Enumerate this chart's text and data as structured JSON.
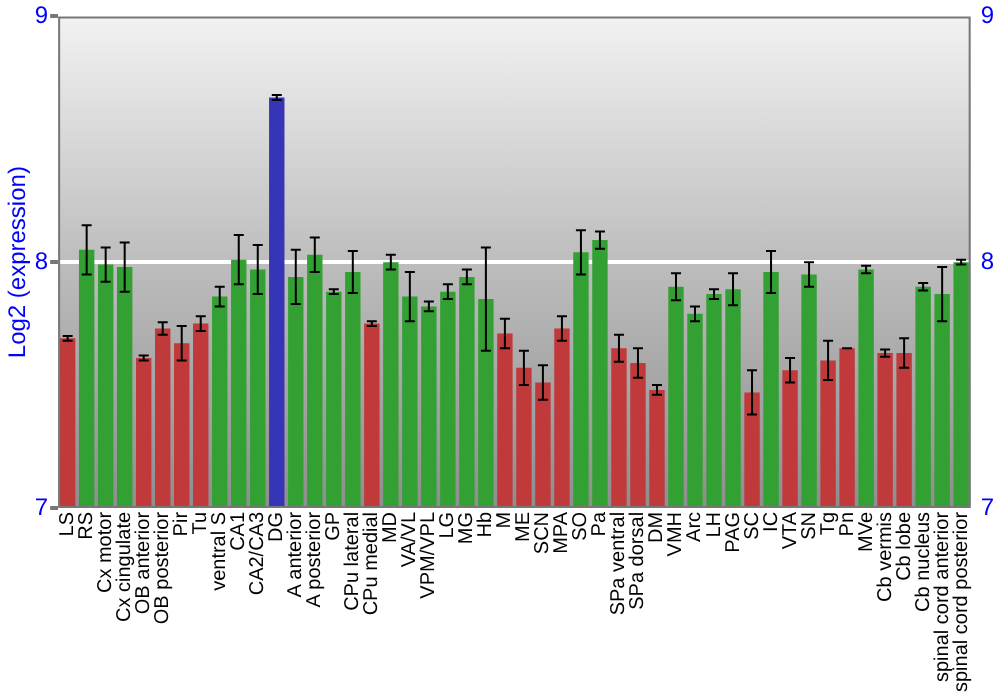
{
  "chart_data": {
    "type": "bar",
    "ylabel": "Log2 (expression)",
    "categories": [
      "LS",
      "RS",
      "Cx motor",
      "Cx cingulate",
      "OB anterior",
      "OB posterior",
      "Pir",
      "Tu",
      "ventral S",
      "CA1",
      "CA2/CA3",
      "DG",
      "A anterior",
      "A posterior",
      "GP",
      "CPu lateral",
      "CPu medial",
      "MD",
      "VA/VL",
      "VPM/VPL",
      "LG",
      "MG",
      "Hb",
      "M",
      "ME",
      "SCN",
      "MPA",
      "SO",
      "Pa",
      "SPa ventral",
      "SPa dorsal",
      "DM",
      "VMH",
      "Arc",
      "LH",
      "PAG",
      "SC",
      "IC",
      "VTA",
      "SN",
      "Tg",
      "Pn",
      "MVe",
      "Cb vermis",
      "Cb lobe",
      "Cb nucleus",
      "spinal cord anterior",
      "spinal cord posterior"
    ],
    "values": [
      7.69,
      8.05,
      7.99,
      7.98,
      7.61,
      7.73,
      7.67,
      7.75,
      7.86,
      8.01,
      7.97,
      8.67,
      7.94,
      8.03,
      7.88,
      7.96,
      7.75,
      8.0,
      7.86,
      7.82,
      7.88,
      7.94,
      7.85,
      7.71,
      7.57,
      7.51,
      7.73,
      8.04,
      8.09,
      7.65,
      7.59,
      7.48,
      7.9,
      7.79,
      7.87,
      7.89,
      7.47,
      7.96,
      7.56,
      7.95,
      7.6,
      7.65,
      7.97,
      7.63,
      7.63,
      7.9,
      7.87,
      8.0
    ],
    "errors": [
      0.01,
      0.1,
      0.07,
      0.1,
      0.01,
      0.025,
      0.07,
      0.03,
      0.04,
      0.1,
      0.1,
      0.01,
      0.11,
      0.07,
      0.01,
      0.085,
      0.01,
      0.03,
      0.1,
      0.02,
      0.03,
      0.03,
      0.21,
      0.06,
      0.07,
      0.07,
      0.05,
      0.09,
      0.035,
      0.055,
      0.06,
      0.02,
      0.055,
      0.03,
      0.02,
      0.065,
      0.09,
      0.085,
      0.05,
      0.05,
      0.08,
      0,
      0.015,
      0.015,
      0.06,
      0.015,
      0.11,
      0.01
    ],
    "colors": [
      "#c0393b",
      "#33a033",
      "#33a033",
      "#33a033",
      "#c0393b",
      "#c0393b",
      "#c0393b",
      "#c0393b",
      "#33a033",
      "#33a033",
      "#33a033",
      "#3535b5",
      "#33a033",
      "#33a033",
      "#33a033",
      "#33a033",
      "#c0393b",
      "#33a033",
      "#33a033",
      "#33a033",
      "#33a033",
      "#33a033",
      "#33a033",
      "#c0393b",
      "#c0393b",
      "#c0393b",
      "#c0393b",
      "#33a033",
      "#33a033",
      "#c0393b",
      "#c0393b",
      "#c0393b",
      "#33a033",
      "#33a033",
      "#33a033",
      "#33a033",
      "#c0393b",
      "#33a033",
      "#c0393b",
      "#33a033",
      "#c0393b",
      "#c0393b",
      "#33a033",
      "#c0393b",
      "#c0393b",
      "#33a033",
      "#33a033",
      "#33a033"
    ],
    "ylim": [
      7,
      9
    ],
    "yticks": [
      7,
      8,
      9
    ],
    "y2lim": [
      7,
      9
    ],
    "y2ticks": [
      7,
      8,
      9
    ],
    "grid": "y",
    "legend": false
  }
}
